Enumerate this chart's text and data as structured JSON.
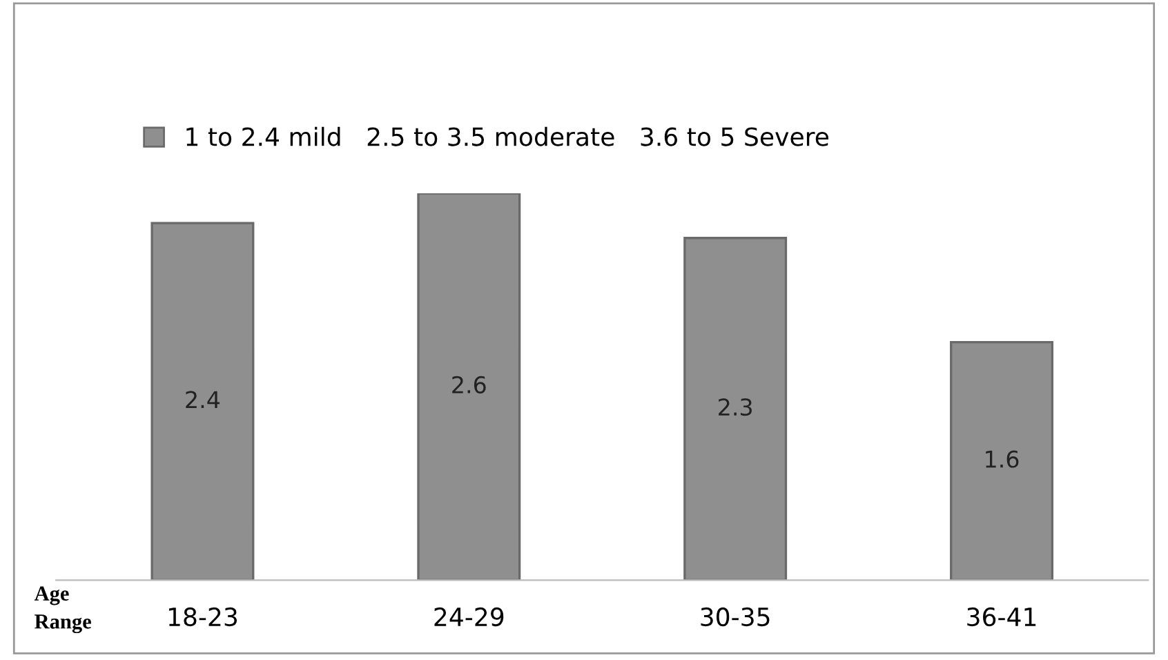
{
  "chart_data": {
    "type": "bar",
    "xlabel": "Age\nRange",
    "categories": [
      "18-23",
      "24-29",
      "30-35",
      "36-41"
    ],
    "series": [
      {
        "name": "1 to 2.4 mild   2.5 to 3.5 moderate   3.6 to 5 Severe",
        "color": "#8f8f8f",
        "values": [
          2.4,
          2.6,
          2.3,
          1.6
        ]
      }
    ],
    "data_labels": true,
    "legend": "top left",
    "grid": false,
    "tick_labels": "x"
  }
}
